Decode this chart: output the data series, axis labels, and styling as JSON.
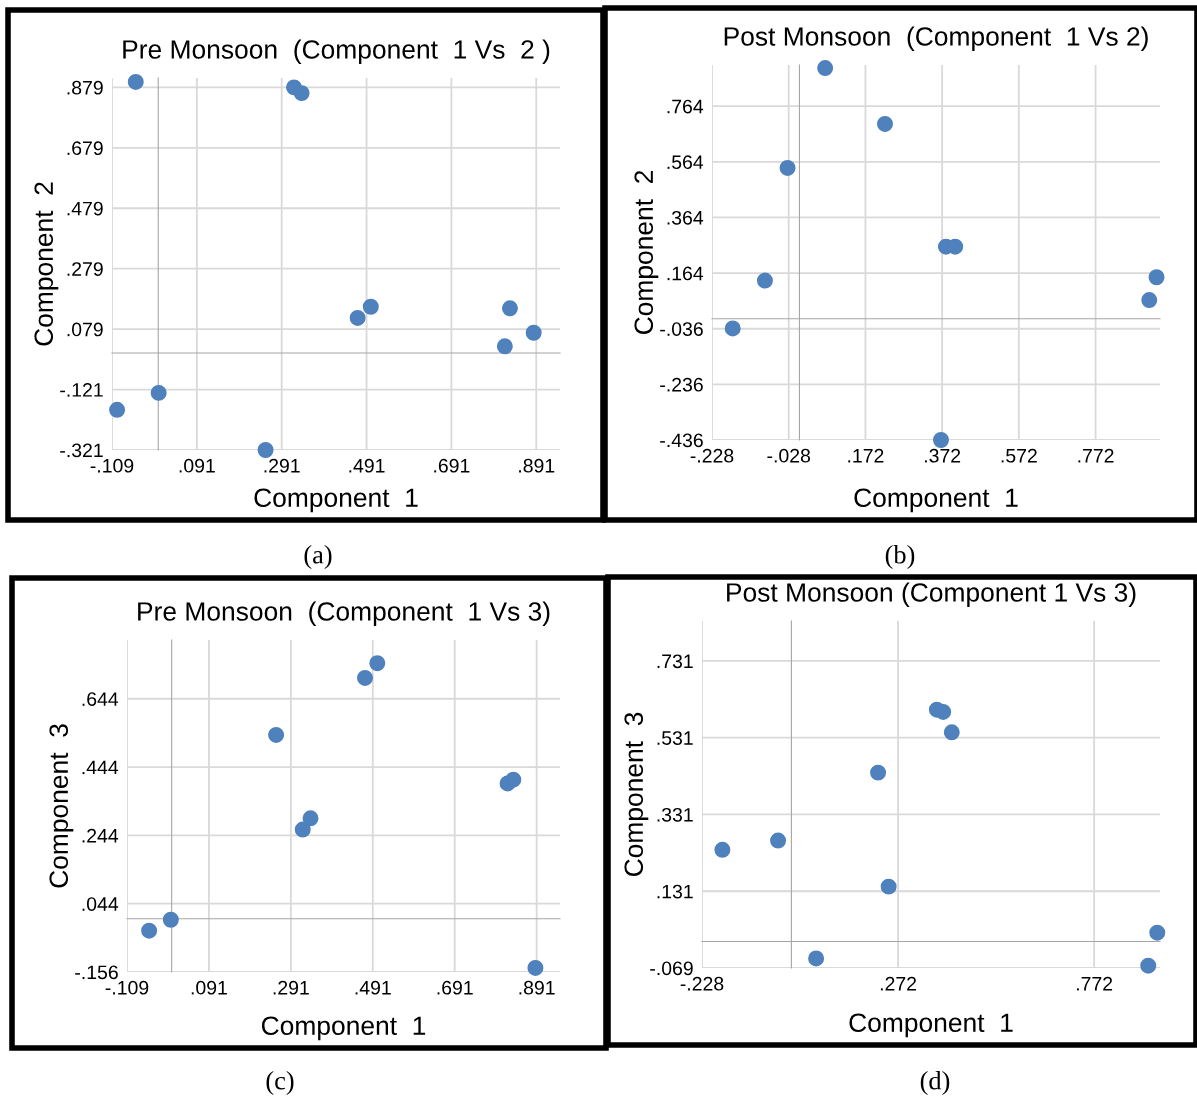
{
  "chart_data": [
    {
      "type": "scatter",
      "title": "Pre Monsoon  (Component  1 Vs  2 )",
      "xlabel": "Component  1",
      "ylabel": "Component  2",
      "color": "#4f81bd",
      "marker": "circle",
      "grid": true,
      "annotations": [
        "(a)"
      ],
      "x": [
        -0.053,
        0.32,
        0.338,
        0.47,
        0.501,
        0.829,
        0.885,
        0.817,
        0.001,
        -0.097,
        0.253
      ],
      "values": [
        0.897,
        0.879,
        0.86,
        0.116,
        0.153,
        0.148,
        0.067,
        0.022,
        -0.132,
        -0.188,
        -0.321
      ],
      "xlim": [
        -0.109,
        0.947
      ],
      "ylim": [
        -0.321,
        0.91
      ],
      "xticks": [
        {
          "value": -0.109,
          "label": "-.109"
        },
        {
          "value": 0.091,
          "label": ".091"
        },
        {
          "value": 0.291,
          "label": ".291"
        },
        {
          "value": 0.491,
          "label": ".491"
        },
        {
          "value": 0.691,
          "label": ".691"
        },
        {
          "value": 0.891,
          "label": ".891"
        }
      ],
      "yticks": [
        {
          "value": -0.321,
          "label": "-.321"
        },
        {
          "value": -0.121,
          "label": "-.121"
        },
        {
          "value": 0.079,
          "label": ".079"
        },
        {
          "value": 0.279,
          "label": ".279"
        },
        {
          "value": 0.479,
          "label": ".479"
        },
        {
          "value": 0.679,
          "label": ".679"
        },
        {
          "value": 0.879,
          "label": ".879"
        }
      ]
    },
    {
      "type": "scatter",
      "title": "Post Monsoon  (Component  1 Vs 2)",
      "xlabel": "Component  1",
      "ylabel": "Component  2",
      "color": "#4f81bd",
      "marker": "circle",
      "grid": true,
      "annotations": [
        "(b)"
      ],
      "x": [
        0.067,
        0.223,
        -0.031,
        0.382,
        0.406,
        -0.09,
        -0.174,
        0.931,
        0.912,
        0.369
      ],
      "values": [
        0.901,
        0.7,
        0.542,
        0.259,
        0.259,
        0.137,
        -0.035,
        0.149,
        0.067,
        -0.436
      ],
      "xlim": [
        -0.228,
        0.94
      ],
      "ylim": [
        -0.436,
        0.912
      ],
      "xticks": [
        {
          "value": -0.228,
          "label": "-.228"
        },
        {
          "value": -0.028,
          "label": "-.028"
        },
        {
          "value": 0.172,
          "label": ".172"
        },
        {
          "value": 0.372,
          "label": ".372"
        },
        {
          "value": 0.572,
          "label": ".572"
        },
        {
          "value": 0.772,
          "label": ".772"
        }
      ],
      "yticks": [
        {
          "value": -0.436,
          "label": "-.436"
        },
        {
          "value": -0.236,
          "label": "-.236"
        },
        {
          "value": -0.036,
          "label": "-.036"
        },
        {
          "value": 0.164,
          "label": ".164"
        },
        {
          "value": 0.364,
          "label": ".364"
        },
        {
          "value": 0.564,
          "label": ".564"
        },
        {
          "value": 0.764,
          "label": ".764"
        }
      ]
    },
    {
      "type": "scatter",
      "title": "Pre Monsoon  (Component  1 Vs 3)",
      "xlabel": "Component  1",
      "ylabel": "Component  3",
      "color": "#4f81bd",
      "marker": "circle",
      "grid": true,
      "annotations": [
        "(c)"
      ],
      "x": [
        0.502,
        0.472,
        0.255,
        0.82,
        0.834,
        0.339,
        0.32,
        -0.002,
        -0.055,
        0.888
      ],
      "values": [
        0.748,
        0.705,
        0.538,
        0.396,
        0.407,
        0.294,
        0.261,
        -0.003,
        -0.035,
        -0.144
      ],
      "xlim": [
        -0.109,
        0.948
      ],
      "ylim": [
        -0.156,
        0.816
      ],
      "xticks": [
        {
          "value": -0.109,
          "label": "-.109"
        },
        {
          "value": 0.091,
          "label": ".091"
        },
        {
          "value": 0.291,
          "label": ".291"
        },
        {
          "value": 0.491,
          "label": ".491"
        },
        {
          "value": 0.691,
          "label": ".691"
        },
        {
          "value": 0.891,
          "label": ".891"
        }
      ],
      "yticks": [
        {
          "value": -0.156,
          "label": "-.156"
        },
        {
          "value": 0.044,
          "label": ".044"
        },
        {
          "value": 0.244,
          "label": ".244"
        },
        {
          "value": 0.444,
          "label": ".444"
        },
        {
          "value": 0.644,
          "label": ".644"
        }
      ]
    },
    {
      "type": "scatter",
      "title": "Post Monsoon (Component 1 Vs 3)",
      "xlabel": "Component  1",
      "ylabel": "Component  3",
      "color": "#4f81bd",
      "marker": "circle",
      "grid": true,
      "annotations": [
        "(d)"
      ],
      "x": [
        0.371,
        0.387,
        0.409,
        0.221,
        -0.034,
        -0.176,
        0.248,
        0.063,
        0.933,
        0.91
      ],
      "values": [
        0.604,
        0.598,
        0.545,
        0.44,
        0.263,
        0.239,
        0.143,
        -0.044,
        0.023,
        -0.063
      ],
      "xlim": [
        -0.228,
        0.94
      ],
      "ylim": [
        -0.069,
        0.835
      ],
      "xticks": [
        {
          "value": -0.228,
          "label": "-.228"
        },
        {
          "value": 0.272,
          "label": ".272"
        },
        {
          "value": 0.772,
          "label": ".772"
        }
      ],
      "yticks": [
        {
          "value": -0.069,
          "label": "-.069"
        },
        {
          "value": 0.131,
          "label": ".131"
        },
        {
          "value": 0.331,
          "label": ".331"
        },
        {
          "value": 0.531,
          "label": ".531"
        },
        {
          "value": 0.731,
          "label": ".731"
        }
      ]
    }
  ]
}
